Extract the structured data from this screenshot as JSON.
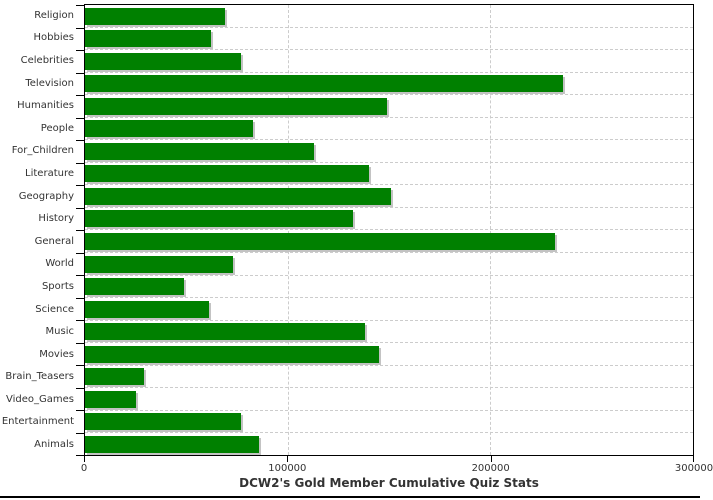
{
  "chart_data": {
    "type": "bar",
    "orientation": "horizontal",
    "title": "DCW2's Gold Member Cumulative Quiz Stats",
    "categories": [
      "Religion",
      "Hobbies",
      "Celebrities",
      "Television",
      "Humanities",
      "People",
      "For_Children",
      "Literature",
      "Geography",
      "History",
      "General",
      "World",
      "Sports",
      "Science",
      "Music",
      "Movies",
      "Brain_Teasers",
      "Video_Games",
      "Entertainment",
      "Animals"
    ],
    "values": [
      69000,
      62000,
      77000,
      236000,
      149000,
      83000,
      113000,
      140000,
      151000,
      132000,
      232000,
      73000,
      49000,
      61000,
      138000,
      145000,
      29000,
      25000,
      77000,
      86000
    ],
    "xlim": [
      0,
      300000
    ],
    "x_ticks": [
      0,
      100000,
      200000,
      300000
    ],
    "x_tick_labels": [
      "0",
      "100000",
      "200000",
      "300000"
    ],
    "grid": "dashed",
    "legend": "none",
    "colors": {
      "bar": "#008000",
      "bar_shadow": "#c3c3c3",
      "gridline": "#cccccc",
      "plot_border": "#000000",
      "text": "#333333",
      "background": "#ffffff"
    }
  }
}
